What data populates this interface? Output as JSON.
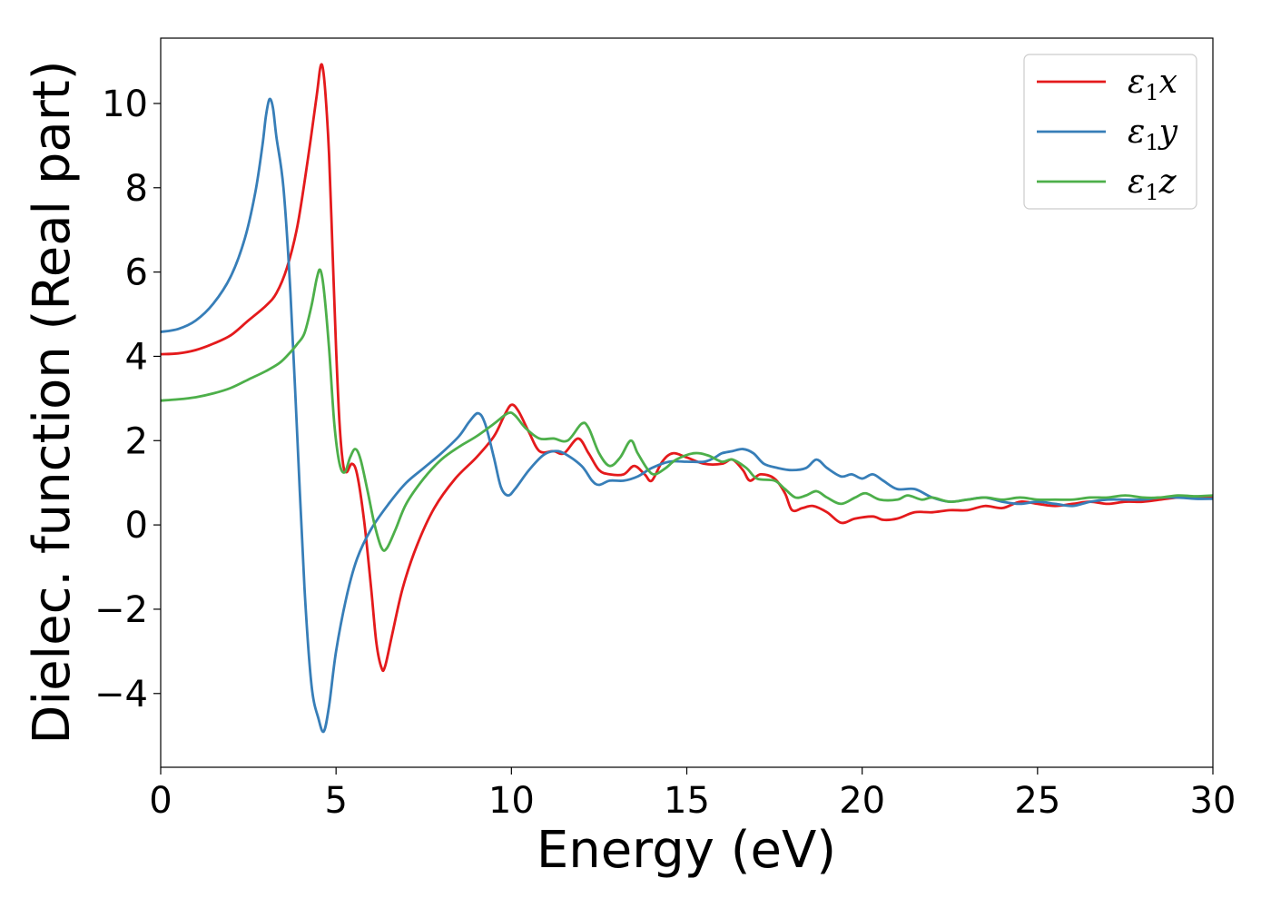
{
  "chart_data": {
    "type": "line",
    "title": "",
    "xlabel": "Energy (eV)",
    "ylabel": "Dielec. function (Real part)",
    "xlim": [
      0,
      30
    ],
    "ylim": [
      -5.75,
      11.55
    ],
    "xticks": [
      0,
      5,
      10,
      15,
      20,
      25,
      30
    ],
    "xtick_labels": [
      "0",
      "5",
      "10",
      "15",
      "20",
      "25",
      "30"
    ],
    "yticks": [
      -4,
      -2,
      0,
      2,
      4,
      6,
      8,
      10
    ],
    "ytick_labels": [
      "−4",
      "−2",
      "0",
      "2",
      "4",
      "6",
      "8",
      "10"
    ],
    "grid": false,
    "legend_position": "top-right",
    "series": [
      {
        "name": "ε1x",
        "label_main": "ε",
        "label_sub": "1",
        "label_tail": "x",
        "color": "#e41a1c",
        "points": [
          [
            0,
            4.05
          ],
          [
            0.5,
            4.07
          ],
          [
            1,
            4.15
          ],
          [
            1.5,
            4.3
          ],
          [
            2,
            4.5
          ],
          [
            2.5,
            4.85
          ],
          [
            3,
            5.2
          ],
          [
            3.3,
            5.5
          ],
          [
            3.6,
            6.1
          ],
          [
            3.9,
            7.1
          ],
          [
            4.2,
            8.7
          ],
          [
            4.45,
            10.2
          ],
          [
            4.55,
            10.85
          ],
          [
            4.62,
            10.85
          ],
          [
            4.7,
            10.2
          ],
          [
            4.8,
            8.8
          ],
          [
            4.9,
            6.5
          ],
          [
            5.0,
            4.2
          ],
          [
            5.1,
            2.4
          ],
          [
            5.2,
            1.45
          ],
          [
            5.3,
            1.25
          ],
          [
            5.45,
            1.45
          ],
          [
            5.6,
            1.2
          ],
          [
            5.8,
            0.1
          ],
          [
            6.0,
            -1.5
          ],
          [
            6.15,
            -2.8
          ],
          [
            6.3,
            -3.4
          ],
          [
            6.4,
            -3.35
          ],
          [
            6.6,
            -2.6
          ],
          [
            6.9,
            -1.5
          ],
          [
            7.3,
            -0.5
          ],
          [
            7.8,
            0.4
          ],
          [
            8.4,
            1.1
          ],
          [
            9.0,
            1.6
          ],
          [
            9.5,
            2.1
          ],
          [
            9.8,
            2.6
          ],
          [
            10.0,
            2.85
          ],
          [
            10.2,
            2.7
          ],
          [
            10.5,
            2.2
          ],
          [
            10.8,
            1.75
          ],
          [
            11.2,
            1.75
          ],
          [
            11.5,
            1.7
          ],
          [
            11.9,
            2.05
          ],
          [
            12.2,
            1.7
          ],
          [
            12.5,
            1.3
          ],
          [
            12.8,
            1.2
          ],
          [
            13.2,
            1.2
          ],
          [
            13.5,
            1.4
          ],
          [
            13.8,
            1.2
          ],
          [
            14.0,
            1.05
          ],
          [
            14.3,
            1.5
          ],
          [
            14.6,
            1.7
          ],
          [
            15.0,
            1.6
          ],
          [
            15.5,
            1.45
          ],
          [
            16.0,
            1.45
          ],
          [
            16.3,
            1.55
          ],
          [
            16.6,
            1.3
          ],
          [
            16.8,
            1.05
          ],
          [
            17.1,
            1.2
          ],
          [
            17.5,
            1.1
          ],
          [
            17.8,
            0.75
          ],
          [
            18.0,
            0.35
          ],
          [
            18.3,
            0.4
          ],
          [
            18.6,
            0.45
          ],
          [
            19.0,
            0.3
          ],
          [
            19.4,
            0.05
          ],
          [
            19.8,
            0.15
          ],
          [
            20.3,
            0.2
          ],
          [
            20.6,
            0.12
          ],
          [
            21.0,
            0.15
          ],
          [
            21.5,
            0.3
          ],
          [
            22.0,
            0.3
          ],
          [
            22.5,
            0.35
          ],
          [
            23.0,
            0.35
          ],
          [
            23.5,
            0.45
          ],
          [
            24.0,
            0.4
          ],
          [
            24.5,
            0.55
          ],
          [
            25.0,
            0.5
          ],
          [
            25.5,
            0.45
          ],
          [
            26.0,
            0.5
          ],
          [
            26.5,
            0.55
          ],
          [
            27.0,
            0.5
          ],
          [
            27.5,
            0.55
          ],
          [
            28.0,
            0.55
          ],
          [
            28.5,
            0.6
          ],
          [
            29.0,
            0.65
          ],
          [
            29.5,
            0.65
          ],
          [
            30,
            0.65
          ]
        ]
      },
      {
        "name": "ε1y",
        "label_main": "ε",
        "label_sub": "1",
        "label_tail": "y",
        "color": "#377eb8",
        "points": [
          [
            0,
            4.58
          ],
          [
            0.5,
            4.65
          ],
          [
            1,
            4.85
          ],
          [
            1.5,
            5.25
          ],
          [
            2,
            5.9
          ],
          [
            2.4,
            6.8
          ],
          [
            2.7,
            7.9
          ],
          [
            2.9,
            9.0
          ],
          [
            3.0,
            9.7
          ],
          [
            3.1,
            10.1
          ],
          [
            3.2,
            9.9
          ],
          [
            3.3,
            9.2
          ],
          [
            3.5,
            8.0
          ],
          [
            3.7,
            5.5
          ],
          [
            3.9,
            2.0
          ],
          [
            4.1,
            -1.5
          ],
          [
            4.3,
            -3.8
          ],
          [
            4.5,
            -4.6
          ],
          [
            4.65,
            -4.9
          ],
          [
            4.8,
            -4.3
          ],
          [
            5.0,
            -3.0
          ],
          [
            5.3,
            -1.7
          ],
          [
            5.6,
            -0.8
          ],
          [
            6.0,
            -0.1
          ],
          [
            6.5,
            0.5
          ],
          [
            7.0,
            1.0
          ],
          [
            7.5,
            1.35
          ],
          [
            8.0,
            1.7
          ],
          [
            8.5,
            2.1
          ],
          [
            8.8,
            2.45
          ],
          [
            9.05,
            2.65
          ],
          [
            9.25,
            2.4
          ],
          [
            9.5,
            1.6
          ],
          [
            9.7,
            0.9
          ],
          [
            9.9,
            0.7
          ],
          [
            10.1,
            0.85
          ],
          [
            10.5,
            1.3
          ],
          [
            10.9,
            1.65
          ],
          [
            11.2,
            1.75
          ],
          [
            11.5,
            1.7
          ],
          [
            12.0,
            1.4
          ],
          [
            12.3,
            1.05
          ],
          [
            12.5,
            0.95
          ],
          [
            12.8,
            1.05
          ],
          [
            13.2,
            1.05
          ],
          [
            13.6,
            1.15
          ],
          [
            14.0,
            1.35
          ],
          [
            14.5,
            1.5
          ],
          [
            15.0,
            1.5
          ],
          [
            15.5,
            1.5
          ],
          [
            15.8,
            1.6
          ],
          [
            16.0,
            1.7
          ],
          [
            16.3,
            1.75
          ],
          [
            16.6,
            1.8
          ],
          [
            16.9,
            1.7
          ],
          [
            17.2,
            1.45
          ],
          [
            17.6,
            1.35
          ],
          [
            18.0,
            1.3
          ],
          [
            18.4,
            1.35
          ],
          [
            18.7,
            1.55
          ],
          [
            19.0,
            1.35
          ],
          [
            19.4,
            1.15
          ],
          [
            19.7,
            1.2
          ],
          [
            20.0,
            1.1
          ],
          [
            20.3,
            1.2
          ],
          [
            20.6,
            1.05
          ],
          [
            21.0,
            0.85
          ],
          [
            21.5,
            0.85
          ],
          [
            22.0,
            0.65
          ],
          [
            22.5,
            0.55
          ],
          [
            23.0,
            0.6
          ],
          [
            23.5,
            0.65
          ],
          [
            24.0,
            0.55
          ],
          [
            24.5,
            0.5
          ],
          [
            25.0,
            0.55
          ],
          [
            25.5,
            0.5
          ],
          [
            26.0,
            0.45
          ],
          [
            26.5,
            0.55
          ],
          [
            27.0,
            0.6
          ],
          [
            27.5,
            0.6
          ],
          [
            28.0,
            0.6
          ],
          [
            28.5,
            0.65
          ],
          [
            29.0,
            0.65
          ],
          [
            29.5,
            0.62
          ],
          [
            30,
            0.62
          ]
        ]
      },
      {
        "name": "ε1z",
        "label_main": "ε",
        "label_sub": "1",
        "label_tail": "z",
        "color": "#4daf4a",
        "points": [
          [
            0,
            2.95
          ],
          [
            0.5,
            2.98
          ],
          [
            1,
            3.03
          ],
          [
            1.5,
            3.12
          ],
          [
            2,
            3.25
          ],
          [
            2.5,
            3.45
          ],
          [
            3.0,
            3.65
          ],
          [
            3.4,
            3.85
          ],
          [
            3.7,
            4.1
          ],
          [
            3.9,
            4.3
          ],
          [
            4.1,
            4.55
          ],
          [
            4.3,
            5.2
          ],
          [
            4.45,
            5.85
          ],
          [
            4.55,
            6.05
          ],
          [
            4.65,
            5.6
          ],
          [
            4.8,
            4.2
          ],
          [
            4.95,
            2.4
          ],
          [
            5.1,
            1.45
          ],
          [
            5.25,
            1.25
          ],
          [
            5.4,
            1.6
          ],
          [
            5.55,
            1.8
          ],
          [
            5.7,
            1.55
          ],
          [
            5.9,
            0.8
          ],
          [
            6.1,
            0.0
          ],
          [
            6.3,
            -0.55
          ],
          [
            6.45,
            -0.55
          ],
          [
            6.7,
            -0.1
          ],
          [
            7.0,
            0.5
          ],
          [
            7.5,
            1.1
          ],
          [
            8.0,
            1.55
          ],
          [
            8.5,
            1.85
          ],
          [
            9.0,
            2.1
          ],
          [
            9.5,
            2.4
          ],
          [
            9.9,
            2.65
          ],
          [
            10.1,
            2.6
          ],
          [
            10.4,
            2.3
          ],
          [
            10.8,
            2.05
          ],
          [
            11.2,
            2.05
          ],
          [
            11.6,
            2.0
          ],
          [
            12.0,
            2.4
          ],
          [
            12.2,
            2.3
          ],
          [
            12.5,
            1.7
          ],
          [
            12.8,
            1.4
          ],
          [
            13.1,
            1.6
          ],
          [
            13.4,
            2.0
          ],
          [
            13.6,
            1.7
          ],
          [
            13.9,
            1.3
          ],
          [
            14.1,
            1.2
          ],
          [
            14.4,
            1.35
          ],
          [
            14.7,
            1.55
          ],
          [
            15.2,
            1.7
          ],
          [
            15.6,
            1.65
          ],
          [
            16.0,
            1.5
          ],
          [
            16.3,
            1.55
          ],
          [
            16.7,
            1.35
          ],
          [
            17.0,
            1.1
          ],
          [
            17.5,
            1.05
          ],
          [
            17.8,
            0.85
          ],
          [
            18.1,
            0.65
          ],
          [
            18.4,
            0.7
          ],
          [
            18.7,
            0.8
          ],
          [
            19.0,
            0.65
          ],
          [
            19.4,
            0.5
          ],
          [
            19.8,
            0.65
          ],
          [
            20.1,
            0.75
          ],
          [
            20.5,
            0.6
          ],
          [
            21.0,
            0.6
          ],
          [
            21.3,
            0.7
          ],
          [
            21.7,
            0.6
          ],
          [
            22.0,
            0.65
          ],
          [
            22.5,
            0.55
          ],
          [
            23.0,
            0.6
          ],
          [
            23.5,
            0.65
          ],
          [
            24.0,
            0.6
          ],
          [
            24.5,
            0.65
          ],
          [
            25.0,
            0.6
          ],
          [
            25.5,
            0.6
          ],
          [
            26.0,
            0.6
          ],
          [
            26.5,
            0.65
          ],
          [
            27.0,
            0.65
          ],
          [
            27.5,
            0.7
          ],
          [
            28.0,
            0.65
          ],
          [
            28.5,
            0.65
          ],
          [
            29.0,
            0.7
          ],
          [
            29.5,
            0.68
          ],
          [
            30,
            0.7
          ]
        ]
      }
    ]
  }
}
